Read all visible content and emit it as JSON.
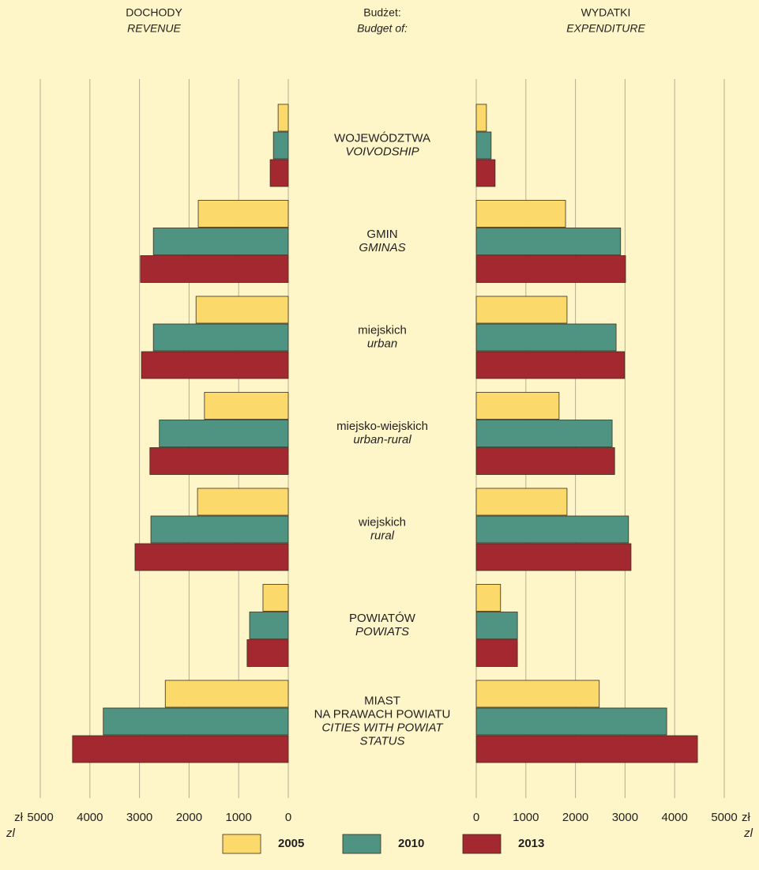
{
  "chart_data": {
    "type": "bar",
    "center_title": "Budżet:",
    "center_subtitle": "Budget of:",
    "categories": [
      "WOJEWÓDZTWA",
      "GMIN",
      "miejskich",
      "miejsko-wiejskich",
      "wiejskich",
      "POWIATÓW",
      "MIAST\nNA PRAWACH POWIATU"
    ],
    "categories_en": [
      "VOIVODSHIP",
      "GMINAS",
      "urban",
      "urban-rural",
      "rural",
      "POWIATS",
      "CITIES WITH POWIAT\nSTATUS"
    ],
    "left": {
      "title": "DOCHODY",
      "subtitle": "REVENUE",
      "xlim": [
        0,
        5000
      ],
      "xticks": [
        0,
        1000,
        2000,
        3000,
        4000,
        5000
      ],
      "unit": "zł",
      "unit_en": "zl"
    },
    "right": {
      "title": "WYDATKI",
      "subtitle": "EXPENDITURE",
      "xlim": [
        0,
        5000
      ],
      "xticks": [
        0,
        1000,
        2000,
        3000,
        4000,
        5000
      ],
      "unit": "zł",
      "unit_en": "zl"
    },
    "series": [
      {
        "name": "2005",
        "color": "#fcd96b",
        "revenue": [
          205,
          1815,
          1860,
          1690,
          1830,
          510,
          2480
        ],
        "expenditure": [
          205,
          1800,
          1830,
          1670,
          1830,
          490,
          2480
        ]
      },
      {
        "name": "2010",
        "color": "#4f9482",
        "revenue": [
          300,
          2720,
          2720,
          2600,
          2770,
          780,
          3730
        ],
        "expenditure": [
          300,
          2910,
          2820,
          2740,
          3070,
          830,
          3840
        ]
      },
      {
        "name": "2013",
        "color": "#a4282f",
        "revenue": [
          365,
          2980,
          2960,
          2790,
          3090,
          830,
          4350
        ],
        "expenditure": [
          380,
          3010,
          2990,
          2790,
          3120,
          830,
          4460
        ]
      }
    ],
    "grid": true
  }
}
